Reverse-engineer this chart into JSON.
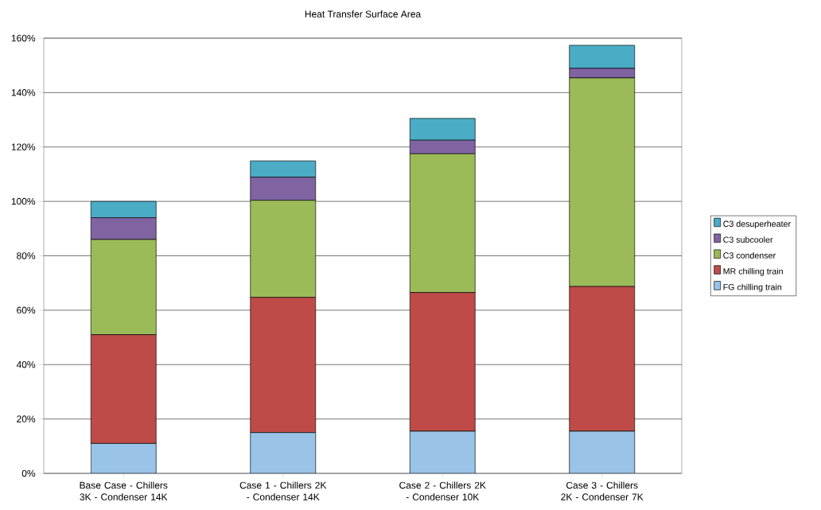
{
  "chart_data": {
    "type": "bar",
    "title": "Heat Transfer Surface Area",
    "stacked": true,
    "categories": [
      "Base Case - Chillers 3K - Condenser 14K",
      "Case 1 - Chillers 2K - Condenser 14K",
      "Case 2 - Chillers 2K - Condenser 10K",
      "Case 3 - Chillers 2K - Condenser 7K"
    ],
    "series": [
      {
        "name": "FG chilling train",
        "color": "#99c4e8",
        "values": [
          11,
          15,
          15.5,
          15.5
        ]
      },
      {
        "name": "MR chilling train",
        "color": "#be4b48",
        "values": [
          40,
          49.7,
          51,
          53.2
        ]
      },
      {
        "name": "C3 condenser",
        "color": "#9bbb59",
        "values": [
          35,
          35.7,
          51,
          76.7
        ]
      },
      {
        "name": "C3 subcooler",
        "color": "#8064a2",
        "values": [
          8,
          8.5,
          5,
          3.5
        ]
      },
      {
        "name": "C3 desuperheater",
        "color": "#4bacc6",
        "values": [
          6,
          6,
          8,
          8.5
        ]
      }
    ],
    "ylim": [
      0,
      160
    ],
    "yticks": [
      {
        "value": 0,
        "label": "0%"
      },
      {
        "value": 20,
        "label": "20%"
      },
      {
        "value": 40,
        "label": "40%"
      },
      {
        "value": 60,
        "label": "60%"
      },
      {
        "value": 80,
        "label": "80%"
      },
      {
        "value": 100,
        "label": "100%"
      },
      {
        "value": 120,
        "label": "120%"
      },
      {
        "value": 140,
        "label": "140%"
      },
      {
        "value": 160,
        "label": "160%"
      }
    ],
    "grid": "y",
    "legend": "right"
  }
}
